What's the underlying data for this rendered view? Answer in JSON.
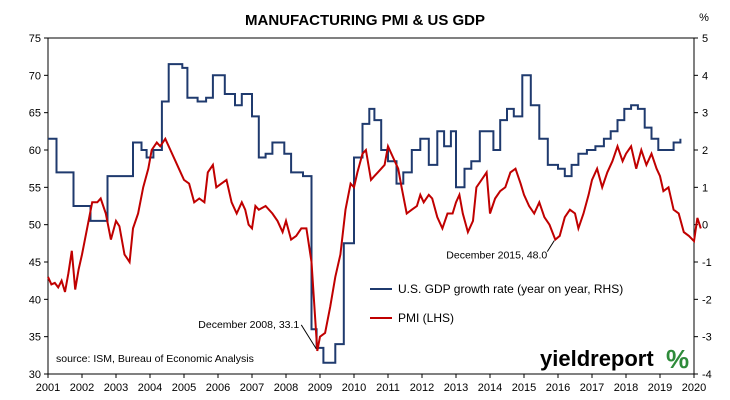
{
  "chart_data": {
    "type": "line",
    "title": "MANUFACTURING PMI & US GDP",
    "right_axis_unit": "%",
    "x_range": [
      2001,
      2020
    ],
    "x_ticks": [
      "2001",
      "2002",
      "2003",
      "2004",
      "2005",
      "2006",
      "2007",
      "2008",
      "2009",
      "2010",
      "2011",
      "2012",
      "2013",
      "2014",
      "2015",
      "2016",
      "2017",
      "2018",
      "2019",
      "2020"
    ],
    "left_axis": {
      "range": [
        30,
        75
      ],
      "ticks": [
        "30",
        "35",
        "40",
        "45",
        "50",
        "55",
        "60",
        "65",
        "70",
        "75"
      ]
    },
    "right_axis": {
      "range": [
        -4,
        5
      ],
      "ticks": [
        "-4",
        "-3",
        "-2",
        "-1",
        "0",
        "1",
        "2",
        "3",
        "4",
        "5"
      ]
    },
    "grid": false,
    "series": [
      {
        "name": "U.S. GDP growth rate (year on year, RHS)",
        "axis": "right",
        "color": "#1f3a6e",
        "step": true,
        "points": [
          [
            2001.0,
            2.3
          ],
          [
            2001.25,
            1.4
          ],
          [
            2001.5,
            1.4
          ],
          [
            2001.75,
            0.5
          ],
          [
            2002.0,
            0.5
          ],
          [
            2002.25,
            0.1
          ],
          [
            2002.5,
            0.1
          ],
          [
            2002.75,
            1.3
          ],
          [
            2003.0,
            1.3
          ],
          [
            2003.25,
            1.3
          ],
          [
            2003.5,
            2.2
          ],
          [
            2003.75,
            2.0
          ],
          [
            2003.9,
            1.8
          ],
          [
            2004.1,
            2.0
          ],
          [
            2004.35,
            3.3
          ],
          [
            2004.55,
            4.3
          ],
          [
            2004.95,
            4.2
          ],
          [
            2005.1,
            3.4
          ],
          [
            2005.4,
            3.3
          ],
          [
            2005.65,
            3.4
          ],
          [
            2005.85,
            4.0
          ],
          [
            2006.2,
            3.5
          ],
          [
            2006.5,
            3.2
          ],
          [
            2006.7,
            3.5
          ],
          [
            2007.0,
            2.9
          ],
          [
            2007.2,
            1.8
          ],
          [
            2007.4,
            1.9
          ],
          [
            2007.6,
            2.2
          ],
          [
            2007.95,
            1.9
          ],
          [
            2008.15,
            1.4
          ],
          [
            2008.5,
            1.3
          ],
          [
            2008.75,
            -2.8
          ],
          [
            2008.9,
            -3.3
          ],
          [
            2009.1,
            -3.7
          ],
          [
            2009.45,
            -3.2
          ],
          [
            2009.7,
            -0.5
          ],
          [
            2010.0,
            1.8
          ],
          [
            2010.25,
            2.7
          ],
          [
            2010.45,
            3.1
          ],
          [
            2010.6,
            2.8
          ],
          [
            2010.8,
            2.0
          ],
          [
            2011.0,
            1.7
          ],
          [
            2011.25,
            1.1
          ],
          [
            2011.45,
            1.4
          ],
          [
            2011.7,
            2.0
          ],
          [
            2011.95,
            2.3
          ],
          [
            2012.2,
            1.6
          ],
          [
            2012.45,
            2.5
          ],
          [
            2012.65,
            2.1
          ],
          [
            2012.85,
            2.5
          ],
          [
            2013.0,
            1.0
          ],
          [
            2013.25,
            1.5
          ],
          [
            2013.45,
            1.7
          ],
          [
            2013.7,
            2.5
          ],
          [
            2013.9,
            2.5
          ],
          [
            2014.1,
            2.0
          ],
          [
            2014.3,
            2.8
          ],
          [
            2014.5,
            3.1
          ],
          [
            2014.7,
            2.9
          ],
          [
            2014.95,
            4.0
          ],
          [
            2015.2,
            3.2
          ],
          [
            2015.45,
            2.3
          ],
          [
            2015.7,
            1.6
          ],
          [
            2016.0,
            1.5
          ],
          [
            2016.2,
            1.3
          ],
          [
            2016.4,
            1.6
          ],
          [
            2016.6,
            1.9
          ],
          [
            2016.85,
            2.0
          ],
          [
            2017.1,
            2.1
          ],
          [
            2017.35,
            2.3
          ],
          [
            2017.55,
            2.5
          ],
          [
            2017.75,
            2.8
          ],
          [
            2017.95,
            3.1
          ],
          [
            2018.15,
            3.2
          ],
          [
            2018.35,
            3.1
          ],
          [
            2018.55,
            2.6
          ],
          [
            2018.75,
            2.3
          ],
          [
            2018.95,
            2.0
          ],
          [
            2019.15,
            2.0
          ],
          [
            2019.4,
            2.2
          ],
          [
            2019.6,
            2.3
          ]
        ]
      },
      {
        "name": "PMI (LHS)",
        "axis": "left",
        "color": "#c00000",
        "step": false,
        "points": [
          [
            2001.0,
            43.0
          ],
          [
            2001.1,
            42.0
          ],
          [
            2001.2,
            42.2
          ],
          [
            2001.3,
            41.6
          ],
          [
            2001.4,
            42.5
          ],
          [
            2001.5,
            41.0
          ],
          [
            2001.6,
            43.5
          ],
          [
            2001.7,
            46.5
          ],
          [
            2001.8,
            41.3
          ],
          [
            2001.9,
            44.0
          ],
          [
            2002.0,
            46.0
          ],
          [
            2002.15,
            49.5
          ],
          [
            2002.3,
            53.0
          ],
          [
            2002.45,
            53.0
          ],
          [
            2002.55,
            53.5
          ],
          [
            2002.7,
            51.5
          ],
          [
            2002.85,
            48.0
          ],
          [
            2003.0,
            50.5
          ],
          [
            2003.1,
            49.8
          ],
          [
            2003.25,
            46.0
          ],
          [
            2003.4,
            45.0
          ],
          [
            2003.5,
            49.5
          ],
          [
            2003.65,
            51.5
          ],
          [
            2003.8,
            55.0
          ],
          [
            2003.95,
            57.5
          ],
          [
            2004.05,
            60.0
          ],
          [
            2004.2,
            61.0
          ],
          [
            2004.3,
            60.5
          ],
          [
            2004.45,
            61.5
          ],
          [
            2004.6,
            60.0
          ],
          [
            2004.75,
            58.5
          ],
          [
            2004.9,
            57.0
          ],
          [
            2005.0,
            56.0
          ],
          [
            2005.15,
            55.5
          ],
          [
            2005.3,
            53.0
          ],
          [
            2005.45,
            53.5
          ],
          [
            2005.6,
            53.0
          ],
          [
            2005.7,
            57.0
          ],
          [
            2005.85,
            58.0
          ],
          [
            2005.95,
            55.0
          ],
          [
            2006.1,
            55.5
          ],
          [
            2006.25,
            56.0
          ],
          [
            2006.4,
            53.0
          ],
          [
            2006.55,
            51.5
          ],
          [
            2006.7,
            53.0
          ],
          [
            2006.8,
            52.0
          ],
          [
            2006.9,
            50.0
          ],
          [
            2007.0,
            49.5
          ],
          [
            2007.1,
            52.5
          ],
          [
            2007.2,
            52.0
          ],
          [
            2007.4,
            52.5
          ],
          [
            2007.6,
            51.5
          ],
          [
            2007.75,
            50.5
          ],
          [
            2007.9,
            49.0
          ],
          [
            2008.0,
            50.5
          ],
          [
            2008.15,
            48.0
          ],
          [
            2008.3,
            48.5
          ],
          [
            2008.45,
            49.5
          ],
          [
            2008.6,
            49.5
          ],
          [
            2008.75,
            45.0
          ],
          [
            2008.85,
            38.0
          ],
          [
            2008.92,
            33.1
          ],
          [
            2009.0,
            35.0
          ],
          [
            2009.15,
            35.5
          ],
          [
            2009.3,
            39.0
          ],
          [
            2009.45,
            43.0
          ],
          [
            2009.6,
            46.0
          ],
          [
            2009.75,
            52.0
          ],
          [
            2009.9,
            55.5
          ],
          [
            2010.0,
            55.0
          ],
          [
            2010.1,
            57.0
          ],
          [
            2010.25,
            59.5
          ],
          [
            2010.35,
            60.0
          ],
          [
            2010.5,
            56.0
          ],
          [
            2010.6,
            56.5
          ],
          [
            2010.7,
            57.0
          ],
          [
            2010.8,
            57.5
          ],
          [
            2010.9,
            58.0
          ],
          [
            2011.0,
            60.5
          ],
          [
            2011.15,
            59.0
          ],
          [
            2011.3,
            57.5
          ],
          [
            2011.4,
            55.0
          ],
          [
            2011.55,
            51.5
          ],
          [
            2011.7,
            52.0
          ],
          [
            2011.85,
            52.5
          ],
          [
            2011.95,
            54.0
          ],
          [
            2012.05,
            53.0
          ],
          [
            2012.2,
            54.0
          ],
          [
            2012.3,
            53.5
          ],
          [
            2012.45,
            51.0
          ],
          [
            2012.6,
            49.5
          ],
          [
            2012.75,
            51.5
          ],
          [
            2012.9,
            51.5
          ],
          [
            2013.0,
            53.0
          ],
          [
            2013.1,
            54.0
          ],
          [
            2013.2,
            51.5
          ],
          [
            2013.35,
            49.0
          ],
          [
            2013.5,
            50.5
          ],
          [
            2013.6,
            55.0
          ],
          [
            2013.75,
            56.0
          ],
          [
            2013.9,
            57.0
          ],
          [
            2014.0,
            51.5
          ],
          [
            2014.15,
            53.5
          ],
          [
            2014.3,
            54.5
          ],
          [
            2014.45,
            55.0
          ],
          [
            2014.6,
            57.0
          ],
          [
            2014.75,
            57.5
          ],
          [
            2014.9,
            55.5
          ],
          [
            2015.0,
            54.0
          ],
          [
            2015.15,
            52.5
          ],
          [
            2015.3,
            51.5
          ],
          [
            2015.45,
            53.0
          ],
          [
            2015.6,
            51.0
          ],
          [
            2015.75,
            50.0
          ],
          [
            2015.92,
            48.0
          ],
          [
            2016.05,
            48.5
          ],
          [
            2016.2,
            51.0
          ],
          [
            2016.35,
            52.0
          ],
          [
            2016.5,
            51.5
          ],
          [
            2016.6,
            49.5
          ],
          [
            2016.75,
            51.5
          ],
          [
            2016.9,
            54.0
          ],
          [
            2017.0,
            56.0
          ],
          [
            2017.15,
            57.5
          ],
          [
            2017.3,
            55.0
          ],
          [
            2017.45,
            57.0
          ],
          [
            2017.6,
            58.5
          ],
          [
            2017.75,
            60.5
          ],
          [
            2017.9,
            58.5
          ],
          [
            2018.0,
            59.5
          ],
          [
            2018.15,
            60.5
          ],
          [
            2018.3,
            57.5
          ],
          [
            2018.45,
            60.0
          ],
          [
            2018.6,
            58.0
          ],
          [
            2018.75,
            59.5
          ],
          [
            2018.9,
            57.5
          ],
          [
            2019.0,
            56.5
          ],
          [
            2019.1,
            54.5
          ],
          [
            2019.25,
            55.0
          ],
          [
            2019.4,
            52.0
          ],
          [
            2019.55,
            51.5
          ],
          [
            2019.7,
            49.0
          ],
          [
            2019.85,
            48.5
          ],
          [
            2020.0,
            47.8
          ],
          [
            2020.1,
            50.9
          ],
          [
            2020.2,
            49.5
          ]
        ]
      }
    ],
    "annotations": [
      {
        "text": "December 2008, 33.1",
        "x": 2008.92,
        "y": 33.1,
        "axis": "left"
      },
      {
        "text": "December 2015, 48.0",
        "x": 2015.92,
        "y": 48.0,
        "axis": "left"
      }
    ],
    "legend_position": "center-right",
    "source": "source: ISM, Bureau of Economic Analysis",
    "logo": {
      "word": "yieldreport",
      "suffix": "%"
    }
  }
}
